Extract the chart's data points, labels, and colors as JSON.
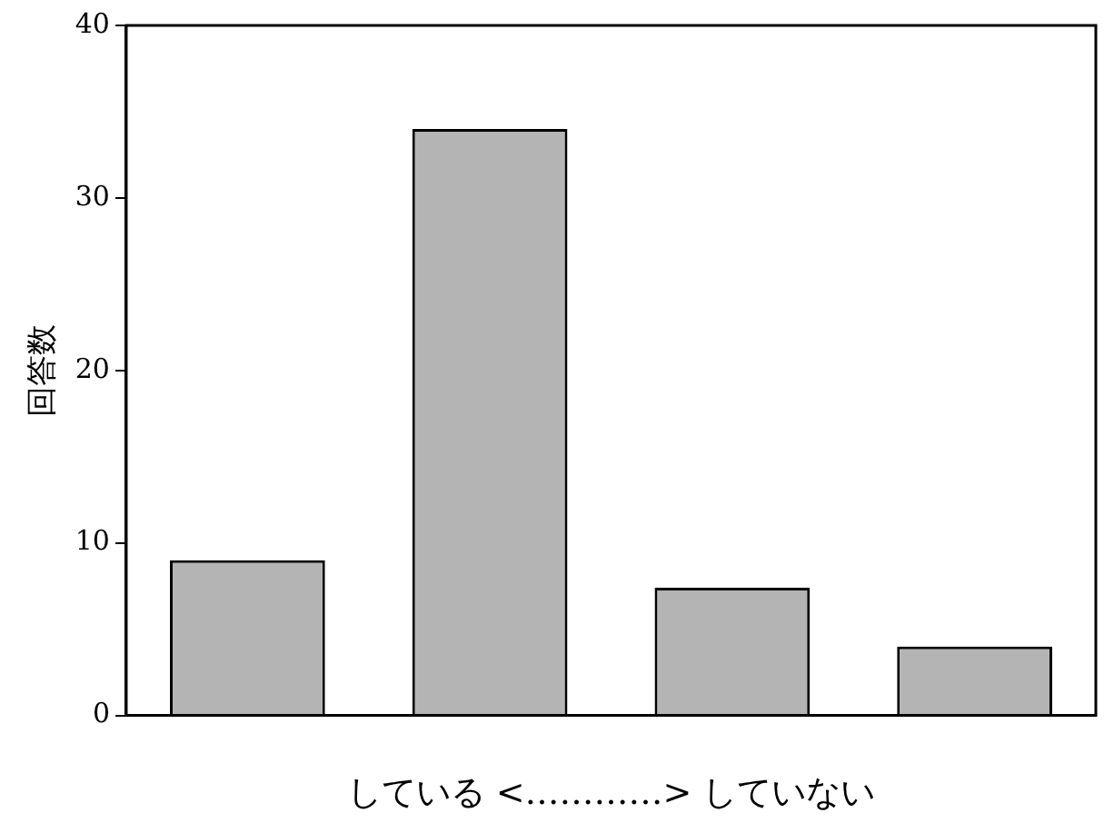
{
  "chart_data": {
    "type": "bar",
    "categories": [
      null,
      null,
      null,
      null
    ],
    "values": [
      9,
      34,
      7.4,
      4
    ],
    "color": "#b4b4b4",
    "xlabel": "している <…………> していない",
    "ylabel": "回答数",
    "ylim": [
      0,
      40
    ],
    "yticks": [
      0,
      10,
      20,
      30,
      40
    ],
    "grid": false,
    "legend": false
  }
}
